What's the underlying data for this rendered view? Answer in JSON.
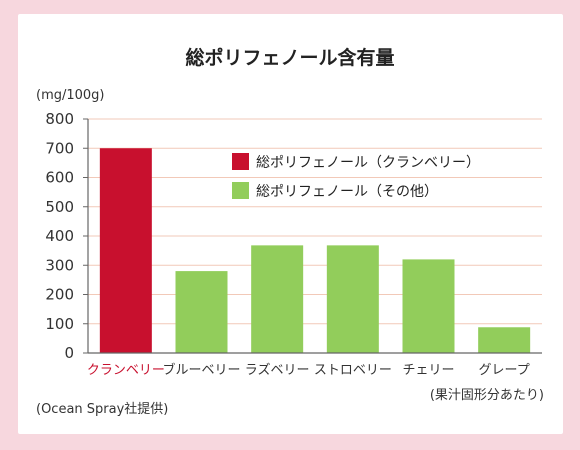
{
  "chart_data": {
    "type": "bar",
    "title": "総ポリフェノール含有量",
    "ylabel": "(mg/100g)",
    "ylim": [
      0,
      800
    ],
    "yticks": [
      0,
      100,
      200,
      300,
      400,
      500,
      600,
      700,
      800
    ],
    "categories": [
      "クランベリー",
      "ブルーベリー",
      "ラズベリー",
      "ストロベリー",
      "チェリー",
      "グレープ"
    ],
    "values": [
      700,
      280,
      368,
      368,
      320,
      88
    ],
    "highlight_index": 0,
    "grid": true,
    "legend_position": "top-right",
    "series": [
      {
        "name": "総ポリフェノール（クランベリー）",
        "color": "#c8102e"
      },
      {
        "name": "総ポリフェノール（その他）",
        "color": "#92cd5b"
      }
    ],
    "source": "(Ocean Spray社提供)",
    "note": "(果汁固形分あたり)"
  }
}
